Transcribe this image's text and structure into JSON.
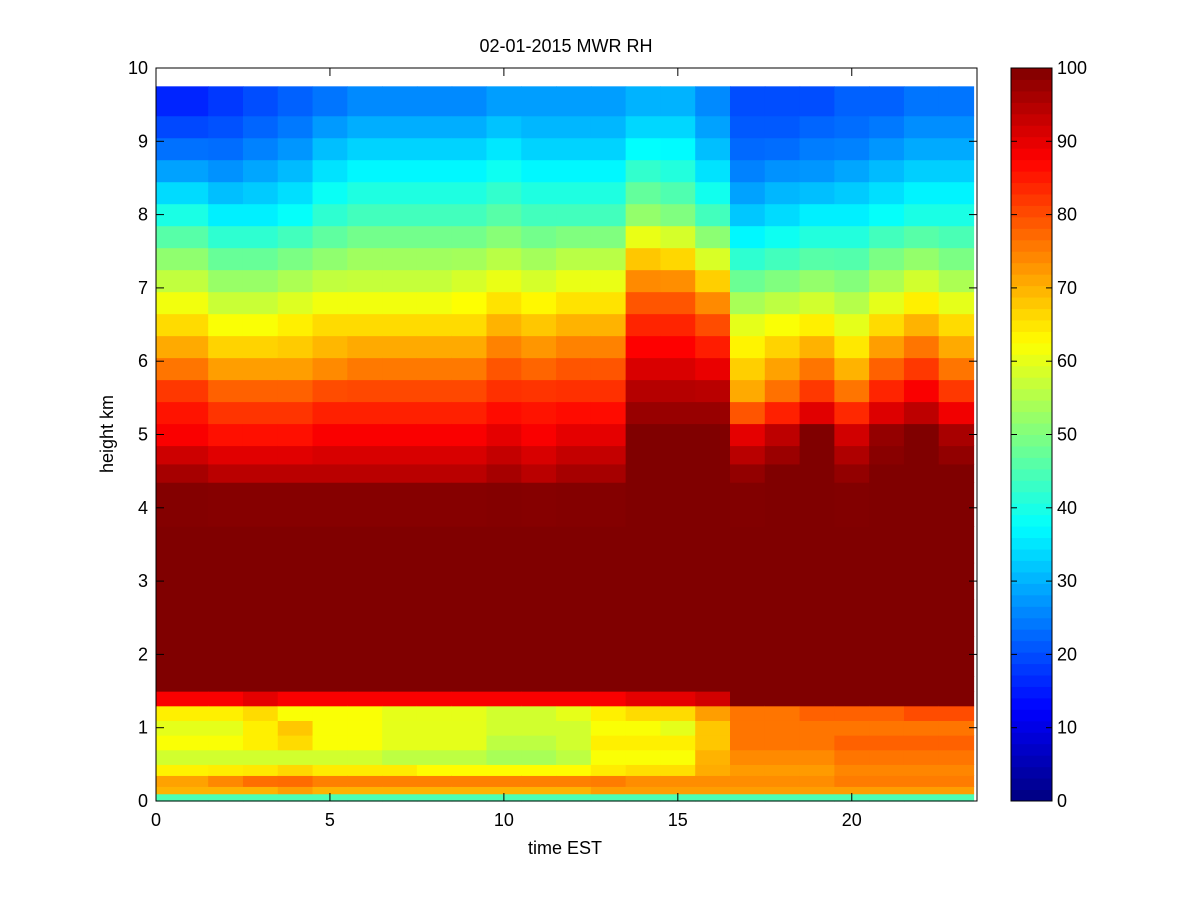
{
  "chart_data": {
    "type": "heatmap",
    "title": "02-01-2015 MWR RH",
    "xlabel": "time EST",
    "ylabel": "height km",
    "xlim": [
      0,
      23.6
    ],
    "ylim": [
      0,
      10
    ],
    "xticks": [
      0,
      5,
      10,
      15,
      20
    ],
    "yticks": [
      0,
      1,
      2,
      3,
      4,
      5,
      6,
      7,
      8,
      9,
      10
    ],
    "x_tick_labels": [
      "0",
      "5",
      "10",
      "15",
      "20"
    ],
    "y_tick_labels": [
      "0",
      "1",
      "2",
      "3",
      "4",
      "5",
      "6",
      "7",
      "8",
      "9",
      "10"
    ],
    "colorbar": {
      "range": [
        0,
        100
      ],
      "ticks": [
        0,
        10,
        20,
        30,
        40,
        50,
        60,
        70,
        80,
        90,
        100
      ],
      "tick_labels": [
        "0",
        "10",
        "20",
        "30",
        "40",
        "50",
        "60",
        "70",
        "80",
        "90",
        "100"
      ],
      "colormap": "jet"
    },
    "x": [
      0.0,
      1.0,
      2.0,
      3.0,
      4.0,
      5.0,
      6.0,
      7.0,
      8.0,
      9.0,
      10.0,
      11.0,
      12.0,
      13.0,
      14.0,
      15.0,
      16.0,
      17.0,
      18.0,
      19.0,
      20.0,
      21.0,
      22.0,
      23.0
    ],
    "x_edges": [
      0,
      1.5,
      2.5,
      3.5,
      4.5,
      5.5,
      6.5,
      7.5,
      8.5,
      9.5,
      10.5,
      11.5,
      12.5,
      13.5,
      14.5,
      15.5,
      16.5,
      17.5,
      18.5,
      19.5,
      20.5,
      21.5,
      22.5,
      23.5
    ],
    "height_km": [
      0.05,
      0.15,
      0.3,
      0.45,
      0.6,
      0.8,
      1.0,
      1.2,
      1.4,
      1.6,
      2.0,
      2.5,
      3.0,
      3.5,
      4.0,
      4.5,
      4.7,
      5.0,
      5.3,
      5.6,
      5.9,
      6.2,
      6.5,
      6.8,
      7.1,
      7.4,
      7.7,
      8.0,
      8.3,
      8.6,
      8.9,
      9.2,
      9.5
    ],
    "height_edges": [
      0,
      0.1,
      0.2,
      0.35,
      0.5,
      0.7,
      0.9,
      1.1,
      1.3,
      1.5,
      1.7,
      2.25,
      2.75,
      3.25,
      3.75,
      4.35,
      4.6,
      4.85,
      5.15,
      5.45,
      5.75,
      6.05,
      6.35,
      6.65,
      6.95,
      7.25,
      7.55,
      7.85,
      8.15,
      8.45,
      8.75,
      9.05,
      9.35,
      9.75
    ],
    "height_profile_template": [
      0.05,
      0.2,
      0.5,
      0.8,
      0.85,
      0.95,
      1.0,
      1.2,
      1.4,
      1.6,
      2.0,
      2.5,
      3.0,
      3.5,
      4.0,
      4.5,
      4.8,
      5.1,
      5.4,
      5.7,
      6.0,
      6.3,
      6.6,
      6.9,
      7.2,
      7.5,
      7.8,
      8.1,
      8.4,
      8.7,
      9.0,
      9.3,
      9.6,
      9.75
    ],
    "profile_keypoints_h": [
      0.05,
      0.15,
      0.3,
      0.45,
      0.6,
      0.8,
      1.0,
      1.2,
      1.4,
      1.6,
      2.0,
      4.0,
      4.5,
      5.0,
      5.5,
      6.0,
      6.5,
      7.0,
      7.5,
      8.0,
      8.5,
      9.0,
      9.5
    ],
    "profiles": [
      [
        45,
        70,
        72,
        62,
        58,
        62,
        60,
        64,
        88,
        100,
        100,
        100,
        96,
        88,
        84,
        74,
        66,
        58,
        50,
        40,
        30,
        22,
        16
      ],
      [
        45,
        70,
        75,
        62,
        58,
        62,
        60,
        64,
        88,
        100,
        100,
        100,
        94,
        86,
        80,
        70,
        62,
        54,
        46,
        36,
        28,
        22,
        18
      ],
      [
        45,
        70,
        78,
        62,
        58,
        64,
        64,
        66,
        90,
        100,
        100,
        100,
        94,
        86,
        80,
        70,
        62,
        54,
        46,
        36,
        30,
        24,
        20
      ],
      [
        45,
        72,
        78,
        64,
        58,
        66,
        68,
        62,
        88,
        100,
        100,
        100,
        94,
        86,
        80,
        70,
        64,
        56,
        48,
        38,
        32,
        26,
        22
      ],
      [
        45,
        70,
        76,
        62,
        58,
        62,
        62,
        62,
        88,
        100,
        100,
        100,
        94,
        88,
        82,
        72,
        66,
        58,
        50,
        42,
        36,
        30,
        24
      ],
      [
        45,
        70,
        76,
        62,
        58,
        62,
        62,
        62,
        88,
        100,
        100,
        100,
        94,
        88,
        82,
        74,
        66,
        58,
        52,
        44,
        38,
        32,
        26
      ],
      [
        45,
        70,
        76,
        62,
        56,
        60,
        60,
        60,
        88,
        100,
        100,
        100,
        94,
        88,
        82,
        74,
        66,
        58,
        52,
        44,
        38,
        32,
        26
      ],
      [
        45,
        70,
        76,
        60,
        56,
        60,
        60,
        60,
        88,
        100,
        100,
        100,
        94,
        88,
        82,
        74,
        66,
        58,
        52,
        44,
        38,
        32,
        26
      ],
      [
        45,
        70,
        76,
        60,
        56,
        60,
        60,
        60,
        88,
        100,
        100,
        100,
        94,
        88,
        82,
        74,
        66,
        60,
        52,
        44,
        38,
        32,
        26
      ],
      [
        45,
        70,
        76,
        60,
        54,
        56,
        58,
        58,
        88,
        100,
        100,
        100,
        96,
        90,
        84,
        78,
        70,
        62,
        54,
        46,
        40,
        34,
        28
      ],
      [
        45,
        70,
        76,
        60,
        54,
        56,
        58,
        58,
        88,
        100,
        100,
        100,
        94,
        88,
        84,
        76,
        68,
        60,
        52,
        44,
        38,
        32,
        28
      ],
      [
        45,
        70,
        76,
        60,
        56,
        58,
        58,
        60,
        88,
        100,
        100,
        100,
        96,
        90,
        84,
        78,
        70,
        62,
        54,
        44,
        38,
        32,
        28
      ],
      [
        45,
        72,
        76,
        62,
        62,
        64,
        62,
        64,
        88,
        100,
        100,
        100,
        96,
        90,
        84,
        78,
        70,
        62,
        54,
        44,
        38,
        32,
        28
      ],
      [
        45,
        72,
        74,
        64,
        62,
        64,
        62,
        66,
        90,
        100,
        100,
        100,
        100,
        100,
        96,
        90,
        84,
        76,
        66,
        52,
        44,
        36,
        30
      ],
      [
        45,
        72,
        74,
        64,
        62,
        64,
        60,
        66,
        90,
        100,
        100,
        100,
        100,
        100,
        96,
        90,
        84,
        76,
        64,
        50,
        42,
        36,
        30
      ],
      [
        45,
        72,
        74,
        70,
        70,
        68,
        68,
        72,
        92,
        100,
        100,
        100,
        100,
        100,
        96,
        88,
        80,
        70,
        56,
        44,
        36,
        30,
        26
      ],
      [
        45,
        72,
        74,
        72,
        74,
        76,
        76,
        76,
        100,
        100,
        100,
        100,
        98,
        90,
        72,
        66,
        60,
        50,
        40,
        32,
        26,
        22,
        20
      ],
      [
        45,
        72,
        74,
        72,
        74,
        76,
        76,
        76,
        100,
        100,
        100,
        100,
        100,
        94,
        78,
        70,
        62,
        52,
        42,
        34,
        28,
        22,
        20
      ],
      [
        45,
        72,
        74,
        72,
        74,
        76,
        76,
        78,
        100,
        100,
        100,
        100,
        100,
        100,
        84,
        74,
        64,
        54,
        44,
        36,
        28,
        24,
        20
      ],
      [
        45,
        72,
        76,
        74,
        76,
        78,
        76,
        78,
        100,
        100,
        100,
        100,
        98,
        92,
        78,
        68,
        60,
        52,
        44,
        36,
        30,
        24,
        22
      ],
      [
        45,
        72,
        76,
        74,
        76,
        78,
        76,
        78,
        100,
        100,
        100,
        100,
        100,
        98,
        86,
        76,
        66,
        56,
        48,
        38,
        32,
        26,
        22
      ],
      [
        45,
        72,
        76,
        74,
        76,
        78,
        76,
        80,
        100,
        100,
        100,
        100,
        100,
        100,
        90,
        80,
        70,
        60,
        50,
        40,
        34,
        28,
        24
      ],
      [
        45,
        72,
        76,
        74,
        76,
        78,
        76,
        80,
        100,
        100,
        100,
        100,
        100,
        96,
        84,
        74,
        66,
        56,
        48,
        40,
        34,
        28,
        24
      ],
      [
        45,
        72,
        76,
        76,
        78,
        80,
        78,
        82,
        100,
        100,
        100,
        100,
        100,
        100,
        92,
        82,
        72,
        62,
        54,
        44,
        36,
        30,
        26
      ]
    ],
    "grid": false,
    "legend": "none"
  }
}
